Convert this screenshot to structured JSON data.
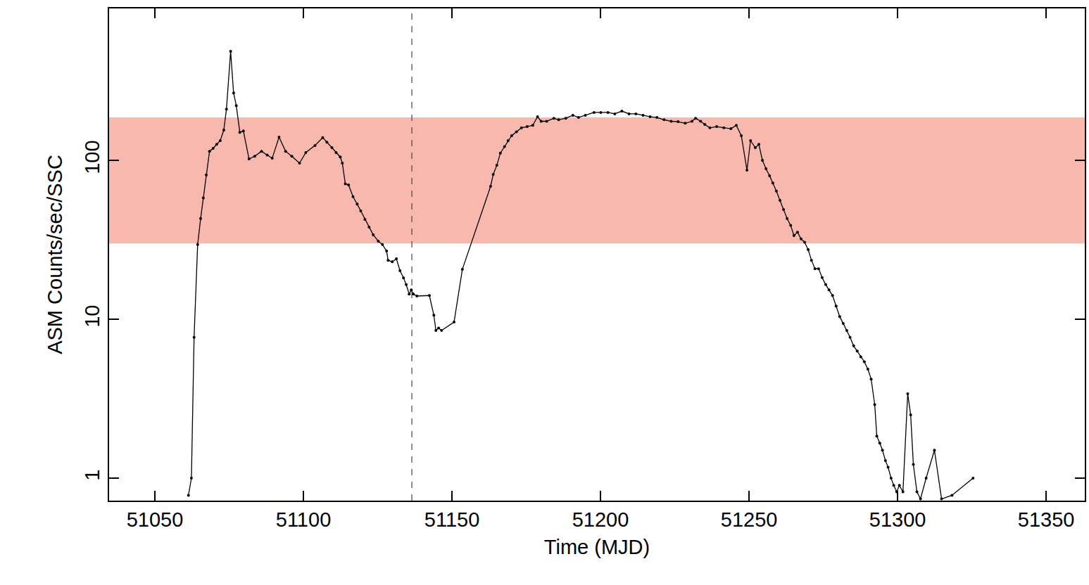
{
  "chart_data": {
    "type": "line",
    "x_label": "Time (MJD)",
    "y_label": "ASM Counts/sec/SSC",
    "log": "y",
    "color": "#000000",
    "marker": "circle",
    "line_style": "solid",
    "xlim": [
      51034.6,
      51363
    ],
    "ylim": [
      0.722,
      903
    ],
    "xticks": [
      51050,
      51100,
      51150,
      51200,
      51250,
      51300,
      51350
    ],
    "yticks": [
      1,
      10,
      100
    ],
    "band": {
      "y0": 30,
      "y1": 186,
      "color": "#f8b8ad"
    },
    "vline": {
      "x": 51136.5,
      "line_style": "dash",
      "color": "#444444"
    },
    "x": [
      51061.3,
      51062.3,
      51063.2,
      51064.4,
      51065.4,
      51066.3,
      51067.3,
      51068.4,
      51069.6,
      51070.8,
      51072.0,
      51073.2,
      51074.1,
      51075.5,
      51076.5,
      51077.4,
      51078.6,
      51079.8,
      51081.7,
      51083.6,
      51085.9,
      51087.8,
      51089.5,
      51091.8,
      51094.0,
      51096.1,
      51098.7,
      51100.8,
      51103.9,
      51106.5,
      51107.9,
      51109.6,
      51111.0,
      51112.4,
      51113.1,
      51114.1,
      51115.2,
      51116.7,
      51118.1,
      51119.3,
      51120.7,
      51122.1,
      51123.5,
      51125.2,
      51126.6,
      51128.0,
      51128.5,
      51129.9,
      51131.3,
      51132.5,
      51133.7,
      51134.6,
      51135.6,
      51136.3,
      51137.0,
      51138.2,
      51142.4,
      51143.9,
      51144.6,
      51145.5,
      51146.5,
      51150.7,
      51153.5,
      51163.0,
      51163.9,
      51165.1,
      51166.3,
      51167.7,
      51168.9,
      51170.1,
      51171.7,
      51173.4,
      51175.3,
      51177.2,
      51178.8,
      51180.0,
      51181.9,
      51184.3,
      51185.9,
      51188.3,
      51190.7,
      51192.6,
      51194.9,
      51197.8,
      51200.1,
      51202.5,
      51204.8,
      51207.2,
      51209.6,
      51211.9,
      51214.3,
      51216.7,
      51219.0,
      51221.4,
      51223.8,
      51226.1,
      51228.5,
      51230.8,
      51232.0,
      51233.7,
      51235.1,
      51236.8,
      51239.1,
      51241.5,
      51243.9,
      51245.7,
      51247.4,
      51249.3,
      51250.5,
      51252.1,
      51253.3,
      51254.5,
      51255.7,
      51256.9,
      51258.0,
      51259.2,
      51260.4,
      51261.6,
      51262.8,
      51264.0,
      51265.1,
      51266.3,
      51267.5,
      51268.7,
      51269.9,
      51271.0,
      51272.2,
      51273.4,
      51274.6,
      51275.8,
      51276.9,
      51278.1,
      51279.3,
      51280.5,
      51281.7,
      51282.9,
      51284.0,
      51285.2,
      51286.4,
      51287.6,
      51288.8,
      51290.0,
      51291.1,
      51292.3,
      51293.0,
      51294.0,
      51294.9,
      51295.9,
      51296.8,
      51297.8,
      51298.7,
      51299.7,
      51300.6,
      51301.8,
      51303.4,
      51304.4,
      51305.3,
      51306.5,
      51307.7,
      51309.6,
      51312.4,
      51314.8,
      51318.3,
      51325.4
    ],
    "values": [
      0.78,
      1.0,
      7.7,
      29.5,
      43,
      58,
      81,
      114,
      119,
      126,
      133,
      155,
      210,
      485,
      265,
      221,
      150,
      153,
      102,
      106,
      114,
      108,
      103,
      140,
      114,
      106,
      96,
      112,
      124,
      139,
      130,
      120,
      112,
      105,
      96,
      71,
      70,
      59,
      53,
      48,
      42.5,
      38,
      34,
      31,
      29.5,
      26.9,
      23.5,
      23,
      24,
      20.2,
      18.2,
      16.5,
      14.4,
      15.3,
      14.4,
      14.0,
      14.1,
      10.6,
      8.5,
      8.8,
      8.5,
      9.6,
      20.6,
      68.6,
      81.6,
      93,
      111,
      122,
      133,
      143,
      151,
      160,
      163,
      166,
      188,
      176,
      176,
      184,
      180,
      184,
      192,
      186,
      192,
      200,
      200,
      200,
      196,
      204,
      196,
      196,
      192,
      188,
      186,
      180,
      176,
      175,
      171,
      176,
      184,
      176,
      168,
      160,
      163,
      160,
      158,
      166,
      143,
      86.7,
      133,
      120,
      126,
      100,
      88.5,
      80,
      72,
      64,
      56,
      49,
      43,
      39,
      33.6,
      35.3,
      32,
      30.5,
      27.4,
      23.5,
      20.8,
      20.8,
      18.3,
      16.5,
      15.3,
      14.1,
      12.1,
      10.4,
      9.4,
      8.5,
      7.7,
      6.8,
      6.3,
      5.8,
      5.4,
      4.85,
      4.2,
      2.9,
      1.84,
      1.66,
      1.5,
      1.29,
      1.17,
      1.0,
      0.9,
      0.82,
      0.9,
      0.82,
      3.4,
      2.5,
      1.22,
      0.82,
      0.74,
      1.0,
      1.5,
      0.74,
      0.78,
      1.0
    ]
  }
}
